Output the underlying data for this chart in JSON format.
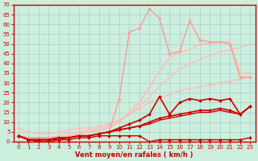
{
  "bg_color": "#cceedd",
  "grid_color": "#aacccc",
  "axis_color": "#cc0000",
  "xlabel": "Vent moyen/en rafales ( km/h )",
  "xlim": [
    -0.5,
    23.5
  ],
  "ylim": [
    0,
    70
  ],
  "xticks": [
    0,
    1,
    2,
    3,
    4,
    5,
    6,
    7,
    8,
    9,
    10,
    11,
    12,
    13,
    14,
    15,
    16,
    17,
    18,
    19,
    20,
    21,
    22,
    23
  ],
  "yticks": [
    0,
    5,
    10,
    15,
    20,
    25,
    30,
    35,
    40,
    45,
    50,
    55,
    60,
    65,
    70
  ],
  "series": [
    {
      "x": [
        0,
        1,
        2,
        3,
        4,
        5,
        6,
        7,
        8,
        9,
        10,
        11,
        12,
        13,
        14,
        15,
        16,
        17,
        18,
        19,
        20,
        21,
        22,
        23
      ],
      "y": [
        7,
        5,
        4,
        4,
        5,
        6,
        7,
        7,
        8,
        9,
        11,
        14,
        17,
        20,
        22,
        24,
        26,
        27,
        28,
        29,
        30,
        31,
        32,
        33
      ],
      "color": "#ffbbbb",
      "lw": 1.0,
      "marker": "o",
      "ms": 2.0,
      "alpha": 1.0,
      "zorder": 2
    },
    {
      "x": [
        0,
        1,
        2,
        3,
        4,
        5,
        6,
        7,
        8,
        9,
        10,
        11,
        12,
        13,
        14,
        15,
        16,
        17,
        18,
        19,
        20,
        21,
        22,
        23
      ],
      "y": [
        3,
        2,
        2,
        2,
        3,
        4,
        5,
        6,
        7,
        8,
        10,
        14,
        18,
        23,
        28,
        33,
        37,
        40,
        42,
        44,
        46,
        47,
        48,
        50
      ],
      "color": "#ffbbbb",
      "lw": 1.0,
      "marker": null,
      "ms": 0,
      "alpha": 1.0,
      "zorder": 2
    },
    {
      "x": [
        0,
        1,
        2,
        3,
        4,
        5,
        6,
        7,
        8,
        9,
        10,
        11,
        12,
        13,
        14,
        15,
        16,
        17,
        18,
        19,
        20,
        21,
        22,
        23
      ],
      "y": [
        3,
        2,
        2,
        2,
        2,
        2,
        3,
        3,
        4,
        5,
        22,
        56,
        58,
        68,
        63,
        45,
        46,
        62,
        52,
        51,
        51,
        50,
        33,
        33
      ],
      "color": "#ff9999",
      "lw": 1.0,
      "marker": "o",
      "ms": 2.0,
      "alpha": 1.0,
      "zorder": 3
    },
    {
      "x": [
        0,
        1,
        2,
        3,
        4,
        5,
        6,
        7,
        8,
        9,
        10,
        11,
        12,
        13,
        14,
        15,
        16,
        17,
        18,
        19,
        20,
        21,
        22,
        23
      ],
      "y": [
        3,
        2,
        2,
        2,
        2,
        3,
        4,
        5,
        6,
        7,
        10,
        15,
        20,
        28,
        36,
        43,
        46,
        47,
        50,
        50,
        51,
        51,
        35,
        35
      ],
      "color": "#ffbbbb",
      "lw": 1.2,
      "marker": null,
      "ms": 0,
      "alpha": 1.0,
      "zorder": 2
    },
    {
      "x": [
        0,
        1,
        2,
        3,
        4,
        5,
        6,
        7,
        8,
        9,
        10,
        11,
        12,
        13,
        14,
        15,
        16,
        17,
        18,
        19,
        20,
        21,
        22,
        23
      ],
      "y": [
        3,
        1,
        1,
        1,
        2,
        2,
        3,
        3,
        4,
        5,
        7,
        9,
        11,
        14,
        23,
        14,
        20,
        22,
        21,
        22,
        21,
        22,
        14,
        18
      ],
      "color": "#cc0000",
      "lw": 1.2,
      "marker": "D",
      "ms": 2.0,
      "alpha": 1.0,
      "zorder": 5
    },
    {
      "x": [
        0,
        1,
        2,
        3,
        4,
        5,
        6,
        7,
        8,
        9,
        10,
        11,
        12,
        13,
        14,
        15,
        16,
        17,
        18,
        19,
        20,
        21,
        22,
        23
      ],
      "y": [
        3,
        1,
        1,
        1,
        1,
        2,
        3,
        3,
        4,
        5,
        6,
        7,
        8,
        9,
        11,
        12,
        13,
        14,
        15,
        15,
        16,
        15,
        14,
        18
      ],
      "color": "#cc0000",
      "lw": 1.0,
      "marker": null,
      "ms": 0,
      "alpha": 1.0,
      "zorder": 4
    },
    {
      "x": [
        0,
        1,
        2,
        3,
        4,
        5,
        6,
        7,
        8,
        9,
        10,
        11,
        12,
        13,
        14,
        15,
        16,
        17,
        18,
        19,
        20,
        21,
        22,
        23
      ],
      "y": [
        3,
        1,
        1,
        1,
        2,
        2,
        3,
        3,
        4,
        5,
        6,
        7,
        8,
        10,
        12,
        13,
        14,
        15,
        16,
        16,
        17,
        16,
        14,
        18
      ],
      "color": "#cc0000",
      "lw": 1.2,
      "marker": "D",
      "ms": 2.0,
      "alpha": 1.0,
      "zorder": 5
    },
    {
      "x": [
        0,
        1,
        2,
        3,
        4,
        5,
        6,
        7,
        8,
        9,
        10,
        11,
        12,
        13,
        14,
        15,
        16,
        17,
        18,
        19,
        20,
        21,
        22,
        23
      ],
      "y": [
        3,
        1,
        0,
        0,
        1,
        1,
        2,
        2,
        3,
        3,
        3,
        3,
        3,
        0,
        1,
        1,
        1,
        1,
        1,
        1,
        1,
        1,
        1,
        2
      ],
      "color": "#cc0000",
      "lw": 1.0,
      "marker": "D",
      "ms": 2.0,
      "alpha": 1.0,
      "zorder": 5
    }
  ]
}
